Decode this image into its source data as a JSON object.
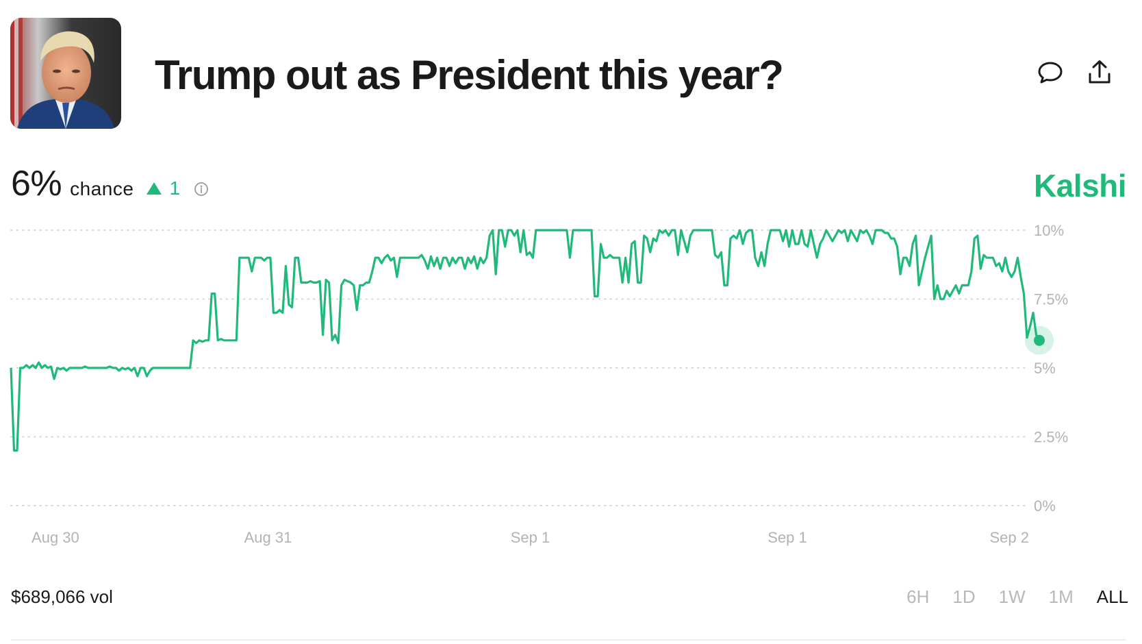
{
  "header": {
    "title": "Trump out as President this year?",
    "avatar_icon": "portrait-photo",
    "comment_icon": "speech-bubble-icon",
    "share_icon": "upload-share-icon"
  },
  "summary": {
    "chance_value": "6%",
    "chance_label": "chance",
    "delta_value": "1",
    "delta_direction": "up",
    "info_icon": "info-circle-icon",
    "brand": "Kalshi"
  },
  "footer": {
    "volume": "$689,066 vol",
    "ranges": [
      "6H",
      "1D",
      "1W",
      "1M",
      "ALL"
    ],
    "active_range": "ALL"
  },
  "colors": {
    "accent": "#1fb97a",
    "grid": "#d6d6d6",
    "axis_text": "#b3b3b3"
  },
  "chart_data": {
    "type": "line",
    "title": "",
    "xlabel": "",
    "ylabel": "",
    "ylim": [
      0,
      10
    ],
    "y_unit": "%",
    "y_ticks": [
      0,
      2.5,
      5,
      7.5,
      10
    ],
    "y_tick_labels": [
      "0%",
      "2.5%",
      "5%",
      "7.5%",
      "10%"
    ],
    "x_tick_labels": [
      "Aug 30",
      "Aug 31",
      "Sep 1",
      "Sep 1",
      "Sep 2"
    ],
    "x_tick_positions": [
      0.02,
      0.25,
      0.505,
      0.755,
      0.99
    ],
    "grid": true,
    "legend": "none",
    "series": [
      {
        "values": [
          5,
          2,
          2,
          5,
          5,
          5.1,
          5,
          5.1,
          5,
          5.2,
          5,
          5.1,
          5,
          5.05,
          4.6,
          5,
          4.95,
          5,
          4.9,
          5,
          5,
          5,
          5,
          5,
          5.05,
          5,
          5,
          5,
          5,
          5,
          5,
          5,
          5.05,
          5,
          5,
          4.9,
          5,
          4.95,
          5,
          4.9,
          5,
          4.7,
          5,
          5,
          4.7,
          4.9,
          5,
          5,
          5,
          5,
          5,
          5,
          5,
          5,
          5,
          5,
          5,
          5,
          5,
          6,
          5.9,
          6,
          5.95,
          6,
          6,
          7.7,
          7.7,
          6,
          6.05,
          6,
          6,
          6,
          6,
          6,
          9,
          9,
          9,
          9,
          8.5,
          9,
          9,
          9,
          8.9,
          9,
          9,
          7,
          7,
          7.1,
          7,
          8.7,
          7.3,
          7.2,
          9,
          9,
          8.1,
          8.1,
          8.1,
          8.15,
          8.1,
          8.1,
          8.15,
          6.2,
          8.2,
          8.1,
          6,
          6.2,
          5.9,
          8,
          8.2,
          8.15,
          8.1,
          8,
          7.1,
          8,
          8,
          8.1,
          8.1,
          8.5,
          9,
          9,
          8.8,
          9,
          9.1,
          8.9,
          9,
          8.3,
          9,
          9,
          9,
          9,
          9,
          9,
          9,
          9.1,
          8.9,
          8.6,
          9.05,
          8.7,
          9,
          8.6,
          9,
          9,
          8.7,
          9,
          8.8,
          9,
          9,
          8.6,
          9,
          8.8,
          9.05,
          8.6,
          9,
          8.8,
          9,
          9.8,
          10,
          8.4,
          10,
          10,
          9.4,
          10,
          10,
          9.8,
          10,
          9.2,
          10,
          9.1,
          9.2,
          9,
          10,
          10,
          10,
          10,
          10,
          10,
          10,
          10,
          10,
          10,
          10,
          9,
          10,
          10,
          10,
          10,
          10,
          10,
          10,
          7.6,
          7.6,
          9.5,
          9,
          9,
          9.1,
          9,
          9,
          9,
          8.1,
          9,
          8.1,
          9.5,
          9.6,
          8.1,
          8.1,
          9.8,
          9.7,
          9.2,
          9.7,
          9.6,
          10,
          9.9,
          10,
          9.8,
          10,
          10,
          9.1,
          10,
          9.6,
          9.2,
          9.8,
          10,
          10,
          10,
          10,
          10,
          10,
          10,
          9.1,
          9,
          9.2,
          8,
          8,
          9.7,
          9.8,
          9.7,
          10,
          9.5,
          9.9,
          10,
          10,
          9,
          8.7,
          9.2,
          8.7,
          9.5,
          10,
          10,
          10,
          10,
          9.6,
          10,
          9.4,
          10,
          9.5,
          9.5,
          10,
          9.5,
          9.4,
          10,
          9.5,
          9,
          9.5,
          9.7,
          10,
          9.8,
          9.6,
          9.8,
          10,
          9.9,
          10,
          9.6,
          10,
          9.8,
          9.6,
          10,
          9.9,
          10,
          9.8,
          9.5,
          10,
          10,
          10,
          9.9,
          9.9,
          9.7,
          9.7,
          9.4,
          8.4,
          9,
          9,
          8.7,
          9.5,
          9.8,
          8,
          8.5,
          9,
          9.4,
          9.8,
          7.5,
          8,
          7.5,
          7.5,
          7.8,
          7.6,
          7.8,
          8,
          7.7,
          8,
          8,
          8,
          8.5,
          9.7,
          9.8,
          8.6,
          9.1,
          9,
          9,
          9,
          8.7,
          8.8,
          8.5,
          9,
          8.5,
          8.3,
          8.5,
          9,
          8.3,
          7.7,
          6.1,
          6.5,
          7,
          6.2,
          6
        ]
      }
    ]
  }
}
